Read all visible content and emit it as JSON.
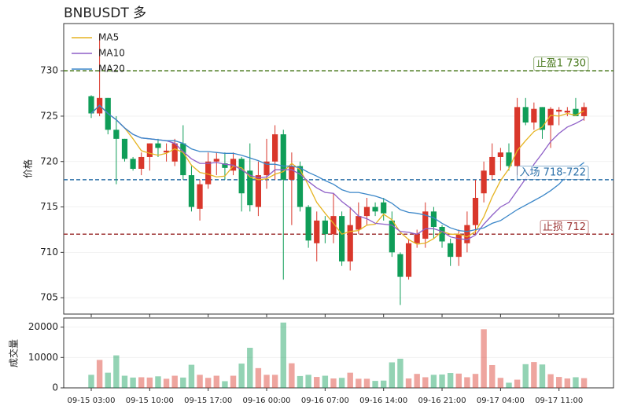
{
  "chart_data": [
    {
      "type": "candlestick",
      "title": "BNBUSDT  多",
      "y_label": "价格",
      "ylim": [
        703.2,
        735.2
      ],
      "yticks": [
        705,
        710,
        715,
        720,
        725,
        730
      ],
      "grid": true,
      "legend": "upper left",
      "up_color": "#d9372b",
      "down_color": "#0f9d58",
      "open": [
        727.2,
        725.3,
        727,
        723.5,
        722.5,
        720.3,
        719.2,
        720.5,
        722,
        721,
        720,
        722,
        718.5,
        714.8,
        717.5,
        720,
        719.8,
        719,
        720.3,
        719,
        715,
        718.5,
        720,
        723,
        718,
        719.5,
        715,
        711,
        713.5,
        712,
        714,
        709,
        712.5,
        714,
        715,
        715.5,
        713.5,
        709.8,
        707.3,
        711,
        711.5,
        714.5,
        712.8,
        711,
        709.5,
        711,
        713,
        716.5,
        718.5,
        720.5,
        721,
        719.5,
        726,
        724.3,
        726,
        724,
        725.5,
        725.4,
        725.8,
        725
      ],
      "high": [
        727.3,
        734,
        727,
        725,
        722.5,
        720.5,
        721,
        722,
        722.5,
        722,
        722.5,
        724,
        719.5,
        718,
        721,
        721,
        721,
        721,
        720.5,
        722,
        720,
        722.5,
        724,
        723.5,
        721,
        720,
        715.2,
        714.5,
        714,
        716.5,
        714.5,
        715,
        715.5,
        716,
        715.5,
        716,
        714.5,
        710,
        711.5,
        712.5,
        715.5,
        715,
        713,
        711.5,
        712.5,
        714.5,
        718,
        720,
        722,
        721.5,
        722,
        727,
        727,
        726.5,
        726,
        726,
        726,
        726,
        727,
        726.5
      ],
      "low": [
        724.8,
        725,
        723,
        717.5,
        720,
        719,
        718.5,
        719,
        720.5,
        720,
        719.5,
        718,
        714.5,
        713.5,
        717,
        718.5,
        718,
        718.5,
        714.5,
        714.5,
        714,
        717,
        718,
        707,
        713,
        714.5,
        710.5,
        709,
        711,
        711,
        708.5,
        708,
        712,
        713,
        714,
        713.5,
        709.5,
        704.2,
        707,
        710.5,
        710.5,
        711.5,
        710.5,
        708.5,
        708.5,
        710,
        712,
        715.5,
        718,
        719,
        719,
        718.5,
        724,
        723.5,
        722.5,
        721.5,
        724,
        725,
        725,
        724.5
      ],
      "close": [
        725.3,
        727,
        723.5,
        722.5,
        720.3,
        719.2,
        720.5,
        722,
        721.5,
        721.2,
        722,
        718.5,
        715,
        717.5,
        720,
        720.3,
        719.3,
        720.3,
        716.5,
        715.2,
        718.5,
        720,
        723,
        718,
        719.5,
        715,
        711.3,
        713.5,
        712,
        714,
        709,
        713,
        714,
        715,
        714.5,
        714.3,
        710,
        707.3,
        711,
        712,
        714.5,
        712.8,
        711.2,
        709.5,
        712,
        713,
        716,
        719,
        720.5,
        721,
        719.5,
        726,
        724.3,
        725.8,
        723.5,
        725.8,
        725.7,
        725.6,
        725,
        726
      ],
      "series": [
        {
          "name": "MA5",
          "color": "#e6b422",
          "values": [
            725.3,
            726.2,
            725.3,
            724.6,
            723.7,
            722.5,
            721.2,
            720.9,
            720.7,
            720.9,
            721.4,
            721.0,
            719.6,
            718.8,
            718.6,
            718.3,
            718.4,
            719.5,
            719.3,
            718.3,
            718.0,
            718.1,
            718.6,
            718.9,
            719.8,
            719.1,
            717.4,
            715.5,
            714.3,
            713.2,
            712.0,
            712.3,
            712.4,
            713.0,
            713.1,
            714.2,
            713.6,
            712.2,
            711.4,
            710.9,
            711.0,
            711.5,
            712.3,
            712.0,
            712.0,
            711.7,
            712.3,
            713.9,
            716.1,
            717.9,
            719.2,
            721.2,
            722.3,
            723.3,
            723.8,
            725.1,
            725.0,
            725.3,
            725.1,
            725.6
          ]
        },
        {
          "name": "MA10",
          "color": "#8e5fc7",
          "values": [
            725.3,
            726.2,
            725.3,
            724.6,
            723.7,
            723.0,
            722.6,
            722.5,
            722.4,
            722.3,
            722.0,
            721.1,
            720.3,
            719.8,
            719.8,
            719.9,
            719.7,
            719.6,
            719.1,
            718.5,
            718.2,
            718.3,
            719.1,
            719.1,
            719.1,
            718.6,
            717.8,
            717.1,
            716.6,
            716.5,
            715.6,
            714.9,
            714.0,
            713.7,
            713.2,
            713.1,
            713.0,
            712.3,
            712.2,
            712.0,
            712.6,
            712.6,
            712.3,
            711.7,
            711.5,
            711.4,
            711.9,
            713.1,
            714.1,
            715.0,
            715.5,
            716.8,
            718.1,
            719.7,
            720.9,
            722.2,
            723.1,
            723.8,
            724.2,
            724.7
          ]
        },
        {
          "name": "MA20",
          "color": "#3a86c8",
          "values": [
            725.3,
            726.2,
            725.3,
            724.6,
            723.7,
            723.0,
            722.6,
            722.5,
            722.4,
            722.3,
            722.3,
            722.0,
            721.4,
            721.1,
            721.1,
            721.0,
            720.9,
            720.9,
            720.7,
            720.4,
            720.1,
            719.7,
            719.7,
            719.5,
            719.5,
            719.3,
            718.8,
            718.4,
            717.9,
            717.5,
            716.9,
            716.6,
            716.6,
            716.4,
            716.2,
            715.9,
            715.4,
            714.7,
            714.4,
            714.3,
            714.1,
            713.8,
            713.2,
            712.7,
            712.4,
            712.3,
            712.5,
            712.7,
            713.2,
            713.5,
            714.1,
            714.7,
            715.2,
            715.7,
            716.2,
            716.8,
            717.5,
            718.5,
            719.2,
            719.9
          ]
        }
      ],
      "annotations": [
        {
          "y": 730,
          "label": "止盈1 730",
          "color": "#4a7a1f"
        },
        {
          "y": 718,
          "label": "入场 718-722",
          "color": "#2a6fa8"
        },
        {
          "y": 712,
          "label": "止损 712",
          "color": "#9e3535"
        }
      ]
    },
    {
      "type": "bar",
      "y_label": "成交量",
      "ylim": [
        0,
        23000
      ],
      "yticks": [
        0,
        10000,
        20000
      ],
      "grid": true,
      "categories": [
        "09-15 03:00",
        null,
        null,
        null,
        null,
        null,
        null,
        "09-15 10:00",
        null,
        null,
        null,
        null,
        null,
        null,
        "09-15 17:00",
        null,
        null,
        null,
        null,
        null,
        null,
        "09-16 00:00",
        null,
        null,
        null,
        null,
        null,
        null,
        "09-16 07:00",
        null,
        null,
        null,
        null,
        null,
        null,
        "09-16 14:00",
        null,
        null,
        null,
        null,
        null,
        null,
        "09-16 21:00",
        null,
        null,
        null,
        null,
        null,
        null,
        "09-17 04:00",
        null,
        null,
        null,
        null,
        null,
        null,
        "09-17 11:00",
        null,
        null,
        null
      ],
      "values": [
        4300,
        9200,
        5000,
        10700,
        4000,
        3400,
        3500,
        3400,
        3800,
        3000,
        4000,
        3400,
        7600,
        4300,
        3300,
        4000,
        2200,
        4000,
        8000,
        13200,
        6500,
        4300,
        4300,
        21500,
        8100,
        3900,
        4300,
        3600,
        4000,
        3100,
        3300,
        5000,
        3000,
        3000,
        2300,
        2400,
        8400,
        9600,
        3100,
        4600,
        3500,
        4300,
        4400,
        4900,
        4700,
        3500,
        4600,
        19300,
        7500,
        3300,
        1700,
        2700,
        7800,
        8500,
        7700,
        4500,
        3600,
        3100,
        3500,
        3200
      ]
    }
  ]
}
